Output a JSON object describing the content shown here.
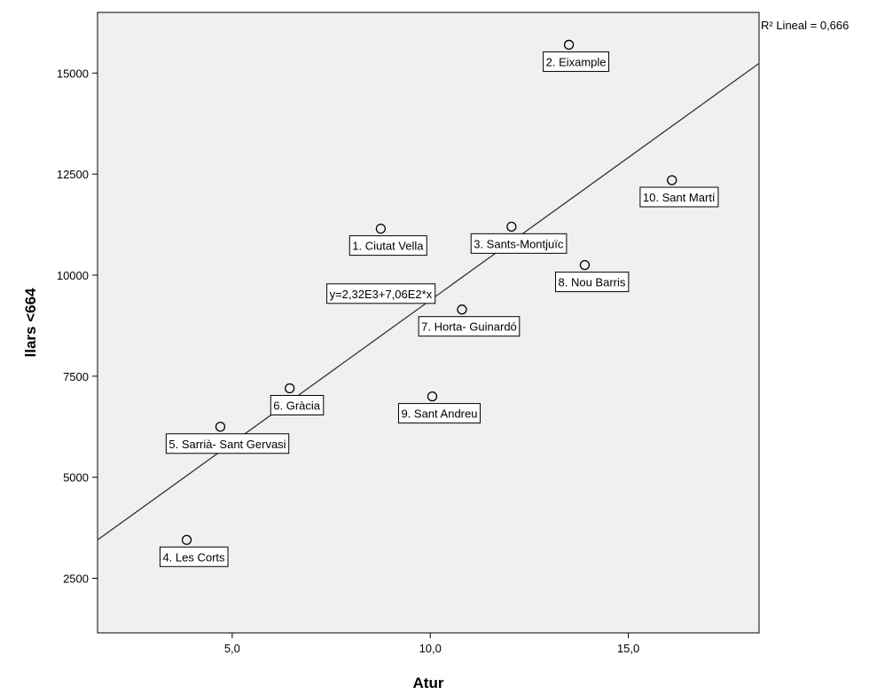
{
  "chart_data": {
    "type": "scatter",
    "title": "",
    "xlabel": "Atur",
    "ylabel": "llars <664",
    "xlim": [
      1.6,
      18.3
    ],
    "ylim": [
      1150,
      16500
    ],
    "x_ticks": [
      5,
      10,
      15
    ],
    "x_tick_labels": [
      "5,0",
      "10,0",
      "15,0"
    ],
    "y_ticks": [
      2500,
      5000,
      7500,
      10000,
      12500,
      15000
    ],
    "y_tick_labels": [
      "2500",
      "5000",
      "7500",
      "10000",
      "12500",
      "15000"
    ],
    "points": [
      {
        "label": "1. Ciutat Vella",
        "x": 8.75,
        "y": 11150
      },
      {
        "label": "2. Eixample",
        "x": 13.5,
        "y": 15700
      },
      {
        "label": "3. Sants-Montjuïc",
        "x": 12.05,
        "y": 11200
      },
      {
        "label": "4. Les Corts",
        "x": 3.85,
        "y": 3450
      },
      {
        "label": "5. Sarrià- Sant Gervasi",
        "x": 4.7,
        "y": 6250
      },
      {
        "label": "6. Gràcia",
        "x": 6.45,
        "y": 7200
      },
      {
        "label": "7. Horta- Guinardó",
        "x": 10.8,
        "y": 9150
      },
      {
        "label": "8. Nou Barris",
        "x": 13.9,
        "y": 10250
      },
      {
        "label": "9. Sant Andreu",
        "x": 10.05,
        "y": 7000
      },
      {
        "label": "10. Sant Martí",
        "x": 16.1,
        "y": 12350
      }
    ],
    "fit_line": {
      "intercept": 2320,
      "slope": 706,
      "equation_label": "y=2,32E3+7,06E2*x"
    },
    "r_squared_label": "R² Lineal = 0,666",
    "grid": false,
    "plot_background": "#f0f0f0",
    "point_color": "#000000",
    "line_color": "#333333"
  }
}
